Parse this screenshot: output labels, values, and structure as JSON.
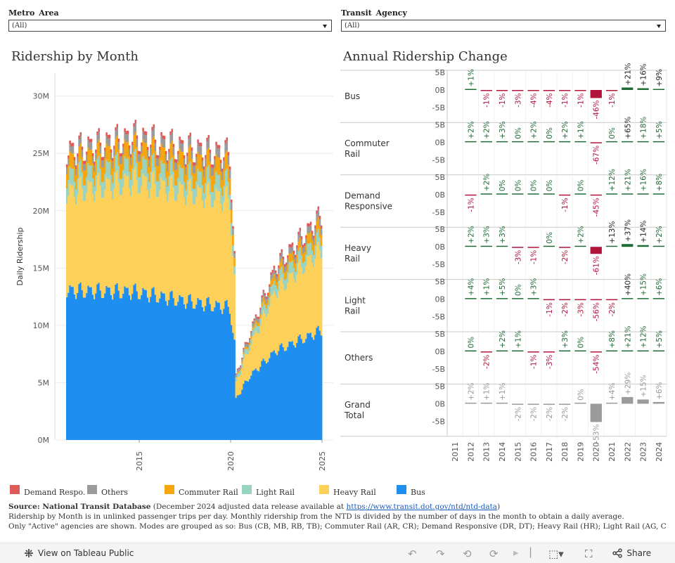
{
  "filters": {
    "metro": {
      "label": "Metro  Area",
      "value": "(All)"
    },
    "agency": {
      "label": "Transit  Agency",
      "value": "(All)"
    }
  },
  "titles": {
    "monthly": "Ridership  by  Month",
    "annual": "Annual  Ridership  Change"
  },
  "colors": {
    "bus": "#1f8ef1",
    "heavy_rail": "#fdd05a",
    "light_rail": "#98d3c4",
    "commuter_rail": "#f7a60d",
    "others": "#9b9b9b",
    "demand": "#e05a5a",
    "positive": "#1e6b35",
    "negative": "#b0163c",
    "total": "#9b9b9b"
  },
  "legend": [
    {
      "label": "Demand Respo...",
      "color": "#e05a5a"
    },
    {
      "label": "Others",
      "color": "#9b9b9b"
    },
    {
      "label": "Commuter Rail",
      "color": "#f7a60d"
    },
    {
      "label": "Light Rail",
      "color": "#98d3c4"
    },
    {
      "label": "Heavy Rail",
      "color": "#fdd05a"
    },
    {
      "label": "Bus",
      "color": "#1f8ef1"
    }
  ],
  "footnote": {
    "source_bold": "Source:  National Transit Database",
    "source_rest": " (December 2024 adjusted data release available at ",
    "link": "https://www.transit.dot.gov/ntd/ntd-data",
    "source_close": ")",
    "line2": "Ridership by Month is in unlinked passenger trips per day. Monthly ridership from the NTD is divided by the number of days in the month to obtain a daily average.",
    "line3": "Only \"Active\" agencies are shown. Modes are grouped as so: Bus (CB, MB, RB, TB); Commuter Rail (AR, CR); Demand Responsive (DR, DT); Heavy Rail (HR); Light Rail (AG, CC,"
  },
  "toolbar": {
    "view_label": "View on Tableau Public",
    "share_label": "Share"
  },
  "chart_data": [
    {
      "type": "area",
      "stacked": true,
      "ylabel": "Daily Ridership",
      "ylim": [
        0,
        32000000
      ],
      "y_ticks": [
        "0M",
        "5M",
        "10M",
        "15M",
        "20M",
        "25M",
        "30M"
      ],
      "x_ticks": [
        "2015",
        "2020",
        "2025"
      ],
      "x_range": [
        "2011-01",
        "2024-12"
      ],
      "series_order": [
        "Bus",
        "Heavy Rail",
        "Light Rail",
        "Commuter Rail",
        "Others",
        "Demand Responsive"
      ],
      "anchors": [
        {
          "t": "2011-01",
          "Bus": 13.1,
          "Heavy Rail": 8.6,
          "Light Rail": 1.4,
          "Commuter Rail": 1.3,
          "Others": 0.6,
          "Demand Responsive": 0.3
        },
        {
          "t": "2014-10",
          "Bus": 13.0,
          "Heavy Rail": 9.7,
          "Light Rail": 1.5,
          "Commuter Rail": 1.4,
          "Others": 0.7,
          "Demand Responsive": 0.3
        },
        {
          "t": "2017-06",
          "Bus": 12.2,
          "Heavy Rail": 9.6,
          "Light Rail": 1.4,
          "Commuter Rail": 1.4,
          "Others": 0.7,
          "Demand Responsive": 0.3
        },
        {
          "t": "2019-12",
          "Bus": 11.6,
          "Heavy Rail": 9.5,
          "Light Rail": 1.4,
          "Commuter Rail": 1.5,
          "Others": 0.8,
          "Demand Responsive": 0.3
        },
        {
          "t": "2020-03",
          "Bus": 8.5,
          "Heavy Rail": 5.5,
          "Light Rail": 0.7,
          "Commuter Rail": 0.7,
          "Others": 0.4,
          "Demand Responsive": 0.2
        },
        {
          "t": "2020-04",
          "Bus": 3.6,
          "Heavy Rail": 1.4,
          "Light Rail": 0.3,
          "Commuter Rail": 0.1,
          "Others": 0.2,
          "Demand Responsive": 0.1
        },
        {
          "t": "2021-01",
          "Bus": 5.6,
          "Heavy Rail": 2.6,
          "Light Rail": 0.5,
          "Commuter Rail": 0.2,
          "Others": 0.3,
          "Demand Responsive": 0.15
        },
        {
          "t": "2022-06",
          "Bus": 7.8,
          "Heavy Rail": 5.2,
          "Light Rail": 0.9,
          "Commuter Rail": 0.6,
          "Others": 0.5,
          "Demand Responsive": 0.25
        },
        {
          "t": "2024-12",
          "Bus": 9.6,
          "Heavy Rail": 7.1,
          "Light Rail": 1.1,
          "Commuter Rail": 1.0,
          "Others": 0.6,
          "Demand Responsive": 0.3
        }
      ],
      "unit_anchor_values": "millions"
    },
    {
      "type": "bar",
      "title": "Annual Ridership Change",
      "categories": [
        "2011",
        "2012",
        "2013",
        "2014",
        "2015",
        "2016",
        "2017",
        "2018",
        "2019",
        "2020",
        "2021",
        "2022",
        "2023",
        "2024"
      ],
      "y_ticks": [
        "5B",
        "0B",
        "-5B"
      ],
      "rows": [
        {
          "name": "Bus",
          "labels": [
            "",
            "+1%",
            "-1%",
            "-1%",
            "-3%",
            "-4%",
            "-4%",
            "-1%",
            "-1%",
            "-46%",
            "-1%",
            "+21%",
            "+16%",
            "+9%"
          ],
          "values": [
            0,
            0.1,
            -0.1,
            -0.1,
            -0.3,
            -0.3,
            -0.3,
            -0.1,
            -0.1,
            -2.3,
            -0.1,
            0.7,
            0.5,
            0.3
          ]
        },
        {
          "name": "Commuter Rail",
          "labels": [
            "",
            "+2%",
            "+2%",
            "+3%",
            "0%",
            "+2%",
            "0%",
            "+2%",
            "+1%",
            "-67%",
            "0%",
            "+65%",
            "+18%",
            "+5%"
          ],
          "values": [
            0,
            0.05,
            0.05,
            0.05,
            0,
            0.05,
            0,
            0.05,
            0.02,
            -0.3,
            0,
            0.2,
            0.1,
            0.05
          ]
        },
        {
          "name": "Demand Responsive",
          "labels": [
            "",
            "-1%",
            "+2%",
            "0%",
            "0%",
            "0%",
            "0%",
            "-1%",
            "0%",
            "-45%",
            "+12%",
            "+21%",
            "+16%",
            "+8%"
          ],
          "values": [
            0,
            -0.01,
            0.01,
            0,
            0,
            0,
            0,
            -0.01,
            0,
            -0.08,
            0.02,
            0.03,
            0.03,
            0.02
          ]
        },
        {
          "name": "Heavy Rail",
          "labels": [
            "",
            "+2%",
            "+3%",
            "+3%",
            "-3%",
            "-1%",
            "0%",
            "-2%",
            "+2%",
            "-61%",
            "+13%",
            "+37%",
            "+14%",
            "+2%"
          ],
          "values": [
            0,
            0.1,
            0.1,
            0.1,
            -0.1,
            -0.05,
            0,
            -0.08,
            0.08,
            -2.0,
            0.2,
            0.8,
            0.5,
            0.1
          ]
        },
        {
          "name": "Light Rail",
          "labels": [
            "",
            "+4%",
            "+1%",
            "+5%",
            "0%",
            "+3%",
            "-1%",
            "-2%",
            "-3%",
            "-56%",
            "-2%",
            "+40%",
            "+15%",
            "+6%"
          ],
          "values": [
            0,
            0.05,
            0.02,
            0.06,
            0,
            0.04,
            -0.02,
            -0.03,
            -0.04,
            -0.3,
            -0.02,
            0.2,
            0.1,
            0.05
          ]
        },
        {
          "name": "Others",
          "labels": [
            "",
            "0%",
            "-2%",
            "+2%",
            "+1%",
            "-1%",
            "-3%",
            "+3%",
            "0%",
            "-54%",
            "+8%",
            "+21%",
            "+12%",
            "+5%"
          ],
          "values": [
            0,
            0,
            -0.02,
            0.02,
            0.01,
            -0.01,
            -0.03,
            0.03,
            0,
            -0.15,
            0.03,
            0.05,
            0.04,
            0.02
          ]
        },
        {
          "name": "Grand Total",
          "labels": [
            "",
            "+2%",
            "+1%",
            "+1%",
            "-2%",
            "-2%",
            "-2%",
            "-2%",
            "0%",
            "-53%",
            "+4%",
            "+29%",
            "+15%",
            "+6%"
          ],
          "values": [
            0,
            0.2,
            0.1,
            0.1,
            -0.3,
            -0.2,
            -0.2,
            -0.2,
            0,
            -5.2,
            0.2,
            1.9,
            1.2,
            0.5
          ]
        }
      ]
    }
  ]
}
